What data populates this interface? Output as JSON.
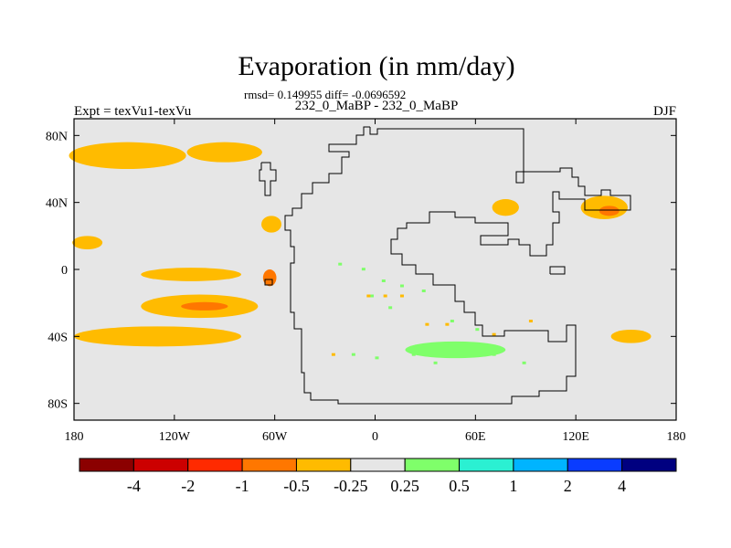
{
  "chart_data": {
    "type": "heatmap",
    "title": "Evaporation (in mm/day)",
    "stats_line": "rmsd= 0.149955 diff= -0.0696592",
    "left_label": "Expt = texVu1-texVu",
    "center_label": "232_0_MaBP - 232_0_MaBP",
    "right_label": "DJF",
    "x_ticks": [
      "180",
      "120W",
      "60W",
      "0",
      "60E",
      "120E",
      "180"
    ],
    "x_tick_values": [
      -180,
      -120,
      -60,
      0,
      60,
      120,
      180
    ],
    "y_ticks": [
      "80N",
      "40N",
      "0",
      "40S",
      "80S"
    ],
    "y_tick_values": [
      80,
      40,
      0,
      -40,
      -80
    ],
    "xlim": [
      -180,
      180
    ],
    "ylim": [
      -90,
      90
    ],
    "colorbar": {
      "labels": [
        "-4",
        "-2",
        "-1",
        "-0.5",
        "-0.25",
        "0.25",
        "0.5",
        "1",
        "2",
        "4"
      ],
      "colors": [
        "#8b0000",
        "#cc0000",
        "#ff2a00",
        "#ff7700",
        "#ffbb00",
        "#e6e6e6",
        "#7fff6a",
        "#2bf0d2",
        "#00b4ff",
        "#0a3cff",
        "#000080"
      ]
    },
    "background_color": "#e6e6e6",
    "regions": [
      {
        "level": "-0.25 to -0.5",
        "color": "#ffbb00",
        "center": [
          -148,
          68
        ],
        "size": [
          70,
          16
        ]
      },
      {
        "level": "-0.25 to -0.5",
        "color": "#ffbb00",
        "center": [
          -90,
          70
        ],
        "size": [
          45,
          12
        ]
      },
      {
        "level": "-0.25 to -0.5",
        "color": "#ffbb00",
        "center": [
          -172,
          16
        ],
        "size": [
          18,
          8
        ]
      },
      {
        "level": "-0.25 to -0.5",
        "color": "#ffbb00",
        "center": [
          -110,
          -3
        ],
        "size": [
          60,
          8
        ]
      },
      {
        "level": "-0.25 to -0.5",
        "color": "#ffbb00",
        "center": [
          -105,
          -22
        ],
        "size": [
          70,
          14
        ]
      },
      {
        "level": "-0.25 to -0.5",
        "color": "#ffbb00",
        "center": [
          -130,
          -40
        ],
        "size": [
          100,
          12
        ]
      },
      {
        "level": "-0.25 to -0.5",
        "color": "#ffbb00",
        "center": [
          -62,
          27
        ],
        "size": [
          12,
          10
        ]
      },
      {
        "level": "-0.5 to -1",
        "color": "#ff7700",
        "center": [
          -63,
          -5
        ],
        "size": [
          8,
          10
        ]
      },
      {
        "level": "-0.5 to -1",
        "color": "#ff7700",
        "center": [
          -102,
          -22
        ],
        "size": [
          28,
          5
        ]
      },
      {
        "level": "-0.25 to -0.5",
        "color": "#ffbb00",
        "center": [
          78,
          37
        ],
        "size": [
          16,
          10
        ]
      },
      {
        "level": "-0.25 to -0.5",
        "color": "#ffbb00",
        "center": [
          137,
          37
        ],
        "size": [
          28,
          14
        ]
      },
      {
        "level": "-0.5 to -1",
        "color": "#ff7700",
        "center": [
          140,
          35
        ],
        "size": [
          12,
          6
        ]
      },
      {
        "level": "-0.25 to -0.5",
        "color": "#ffbb00",
        "center": [
          153,
          -40
        ],
        "size": [
          24,
          8
        ]
      },
      {
        "level": "0.25 to 0.5",
        "color": "#7fff6a",
        "center": [
          48,
          -48
        ],
        "size": [
          60,
          10
        ]
      }
    ],
    "coastline": "Continental outline (single landmass)"
  }
}
